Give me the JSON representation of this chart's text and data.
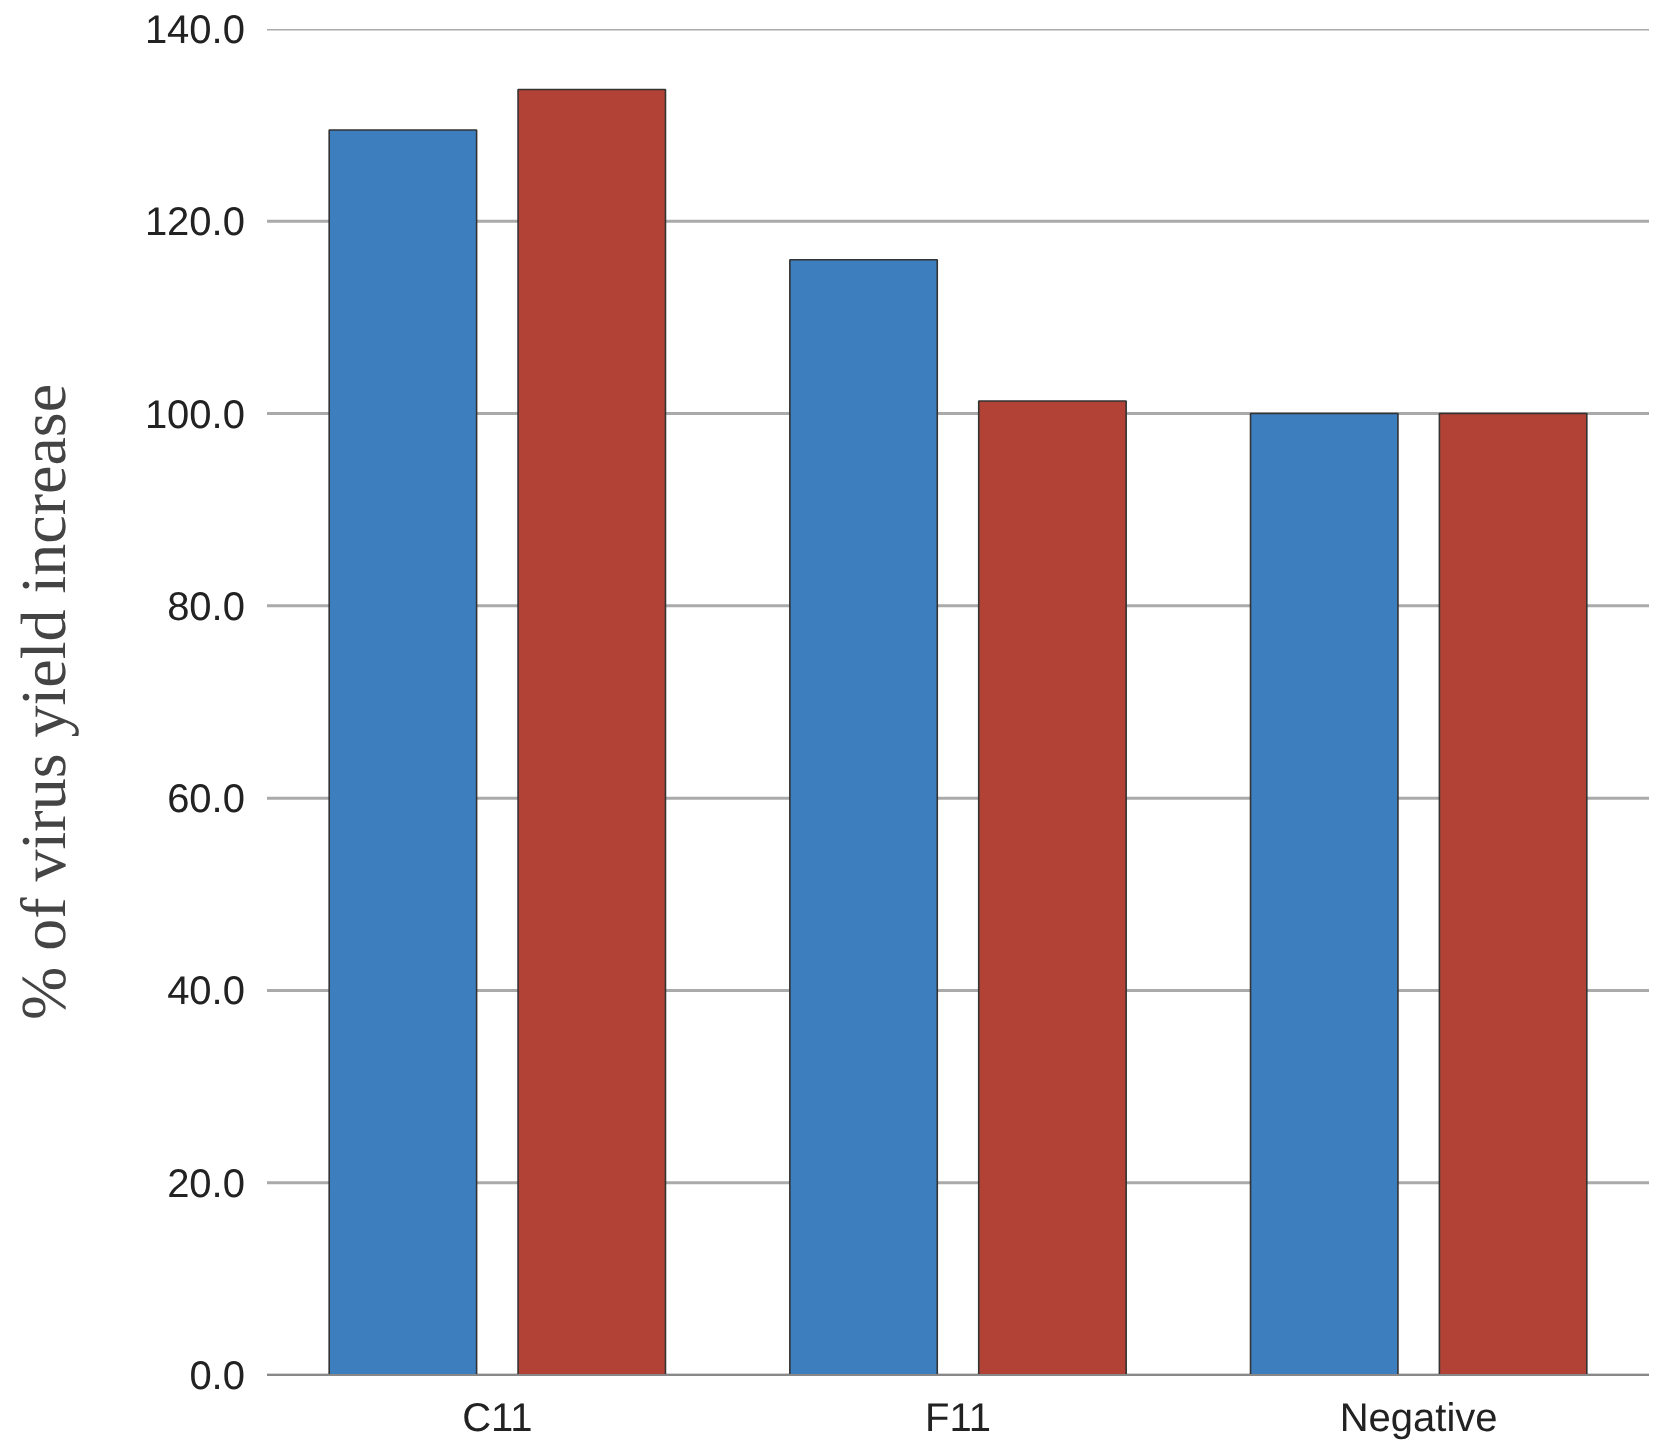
{
  "chart_data": {
    "type": "bar",
    "ylabel": "% of virus yield increase",
    "categories": [
      "C11",
      "F11",
      "Negative"
    ],
    "series": [
      {
        "color": "#3d7ebf",
        "values": [
          129.5,
          116.0,
          100.0
        ]
      },
      {
        "color": "#b34236",
        "values": [
          133.7,
          101.3,
          100.0
        ]
      }
    ],
    "ylim": [
      0,
      140
    ],
    "yticks": [
      {
        "value": 0,
        "label": "0.0"
      },
      {
        "value": 20,
        "label": "20.0"
      },
      {
        "value": 40,
        "label": "40.0"
      },
      {
        "value": 60,
        "label": "60.0"
      },
      {
        "value": 80,
        "label": "80.0"
      },
      {
        "value": 100,
        "label": "100.0"
      },
      {
        "value": 120,
        "label": "120.0"
      },
      {
        "value": 140,
        "label": "140.0"
      }
    ],
    "grid": "y"
  }
}
